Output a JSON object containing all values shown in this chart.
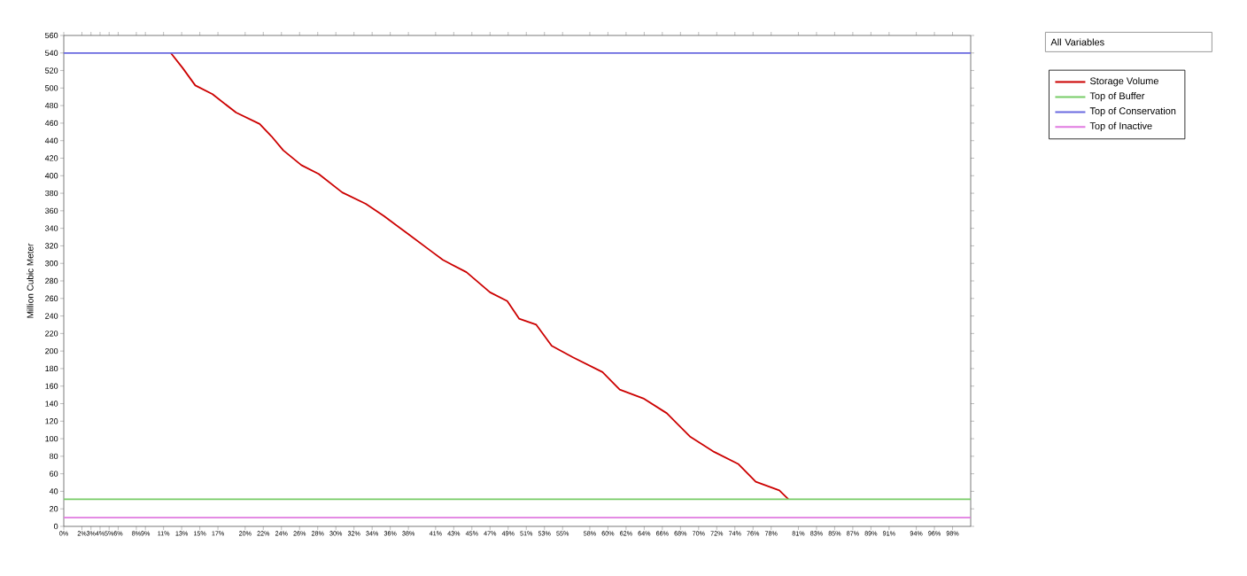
{
  "chart_data": {
    "type": "line",
    "ylabel": "Million Cubic Meter",
    "xlim": [
      0,
      100
    ],
    "ylim": [
      0,
      560
    ],
    "xticks": [
      {
        "value": 0,
        "label": "0%"
      },
      {
        "value": 2,
        "label": "2%"
      },
      {
        "value": 3,
        "label": "3%"
      },
      {
        "value": 4,
        "label": "4%"
      },
      {
        "value": 5,
        "label": "5%"
      },
      {
        "value": 6,
        "label": "6%"
      },
      {
        "value": 8,
        "label": "8%"
      },
      {
        "value": 9,
        "label": "9%"
      },
      {
        "value": 11,
        "label": "11%"
      },
      {
        "value": 13,
        "label": "13%"
      },
      {
        "value": 15,
        "label": "15%"
      },
      {
        "value": 17,
        "label": "17%"
      },
      {
        "value": 20,
        "label": "20%"
      },
      {
        "value": 22,
        "label": "22%"
      },
      {
        "value": 24,
        "label": "24%"
      },
      {
        "value": 26,
        "label": "26%"
      },
      {
        "value": 28,
        "label": "28%"
      },
      {
        "value": 30,
        "label": "30%"
      },
      {
        "value": 32,
        "label": "32%"
      },
      {
        "value": 34,
        "label": "34%"
      },
      {
        "value": 36,
        "label": "36%"
      },
      {
        "value": 38,
        "label": "38%"
      },
      {
        "value": 41,
        "label": "41%"
      },
      {
        "value": 43,
        "label": "43%"
      },
      {
        "value": 45,
        "label": "45%"
      },
      {
        "value": 47,
        "label": "47%"
      },
      {
        "value": 49,
        "label": "49%"
      },
      {
        "value": 51,
        "label": "51%"
      },
      {
        "value": 53,
        "label": "53%"
      },
      {
        "value": 55,
        "label": "55%"
      },
      {
        "value": 58,
        "label": "58%"
      },
      {
        "value": 60,
        "label": "60%"
      },
      {
        "value": 62,
        "label": "62%"
      },
      {
        "value": 64,
        "label": "64%"
      },
      {
        "value": 66,
        "label": "66%"
      },
      {
        "value": 68,
        "label": "68%"
      },
      {
        "value": 70,
        "label": "70%"
      },
      {
        "value": 72,
        "label": "72%"
      },
      {
        "value": 74,
        "label": "74%"
      },
      {
        "value": 76,
        "label": "76%"
      },
      {
        "value": 78,
        "label": "78%"
      },
      {
        "value": 81,
        "label": "81%"
      },
      {
        "value": 83,
        "label": "83%"
      },
      {
        "value": 85,
        "label": "85%"
      },
      {
        "value": 87,
        "label": "87%"
      },
      {
        "value": 89,
        "label": "89%"
      },
      {
        "value": 91,
        "label": "91%"
      },
      {
        "value": 94,
        "label": "94%"
      },
      {
        "value": 96,
        "label": "96%"
      },
      {
        "value": 98,
        "label": "98%"
      }
    ],
    "yticks": [
      0,
      20,
      40,
      60,
      80,
      100,
      120,
      140,
      160,
      180,
      200,
      220,
      240,
      260,
      280,
      300,
      320,
      340,
      360,
      380,
      400,
      420,
      440,
      460,
      480,
      500,
      520,
      540,
      560
    ],
    "grid": false,
    "legend": "right",
    "marker": "none",
    "line_style": "solid",
    "annotations": [
      "All Variables"
    ],
    "series": [
      {
        "name": "Storage Volume",
        "color": "#cc0000",
        "x": [
          11.8,
          13.1,
          14.5,
          16.4,
          19.0,
          21.6,
          22.9,
          24.2,
          26.2,
          28.1,
          30.7,
          33.3,
          35.3,
          37.9,
          40.5,
          41.8,
          44.4,
          47.0,
          48.9,
          50.2,
          52.1,
          53.8,
          56.1,
          59.4,
          61.3,
          63.9,
          66.5,
          69.1,
          71.7,
          74.4,
          76.3,
          78.9,
          79.9
        ],
        "values": [
          540,
          523,
          503,
          493,
          472,
          459,
          445,
          429,
          412,
          402,
          381,
          368,
          354,
          334,
          314,
          304,
          290,
          267,
          257,
          237,
          230,
          206,
          193,
          176,
          156,
          146,
          129,
          102,
          85,
          71,
          51,
          41,
          31
        ]
      },
      {
        "name": "Top of Buffer",
        "color": "#77cc66",
        "x": [
          0,
          100
        ],
        "values": [
          31,
          31
        ]
      },
      {
        "name": "Top of Conservation",
        "color": "#6a6ae0",
        "x": [
          0,
          100
        ],
        "values": [
          540,
          540
        ]
      },
      {
        "name": "Top of Inactive",
        "color": "#e07ae0",
        "x": [
          0,
          100
        ],
        "values": [
          10,
          10
        ]
      }
    ]
  }
}
